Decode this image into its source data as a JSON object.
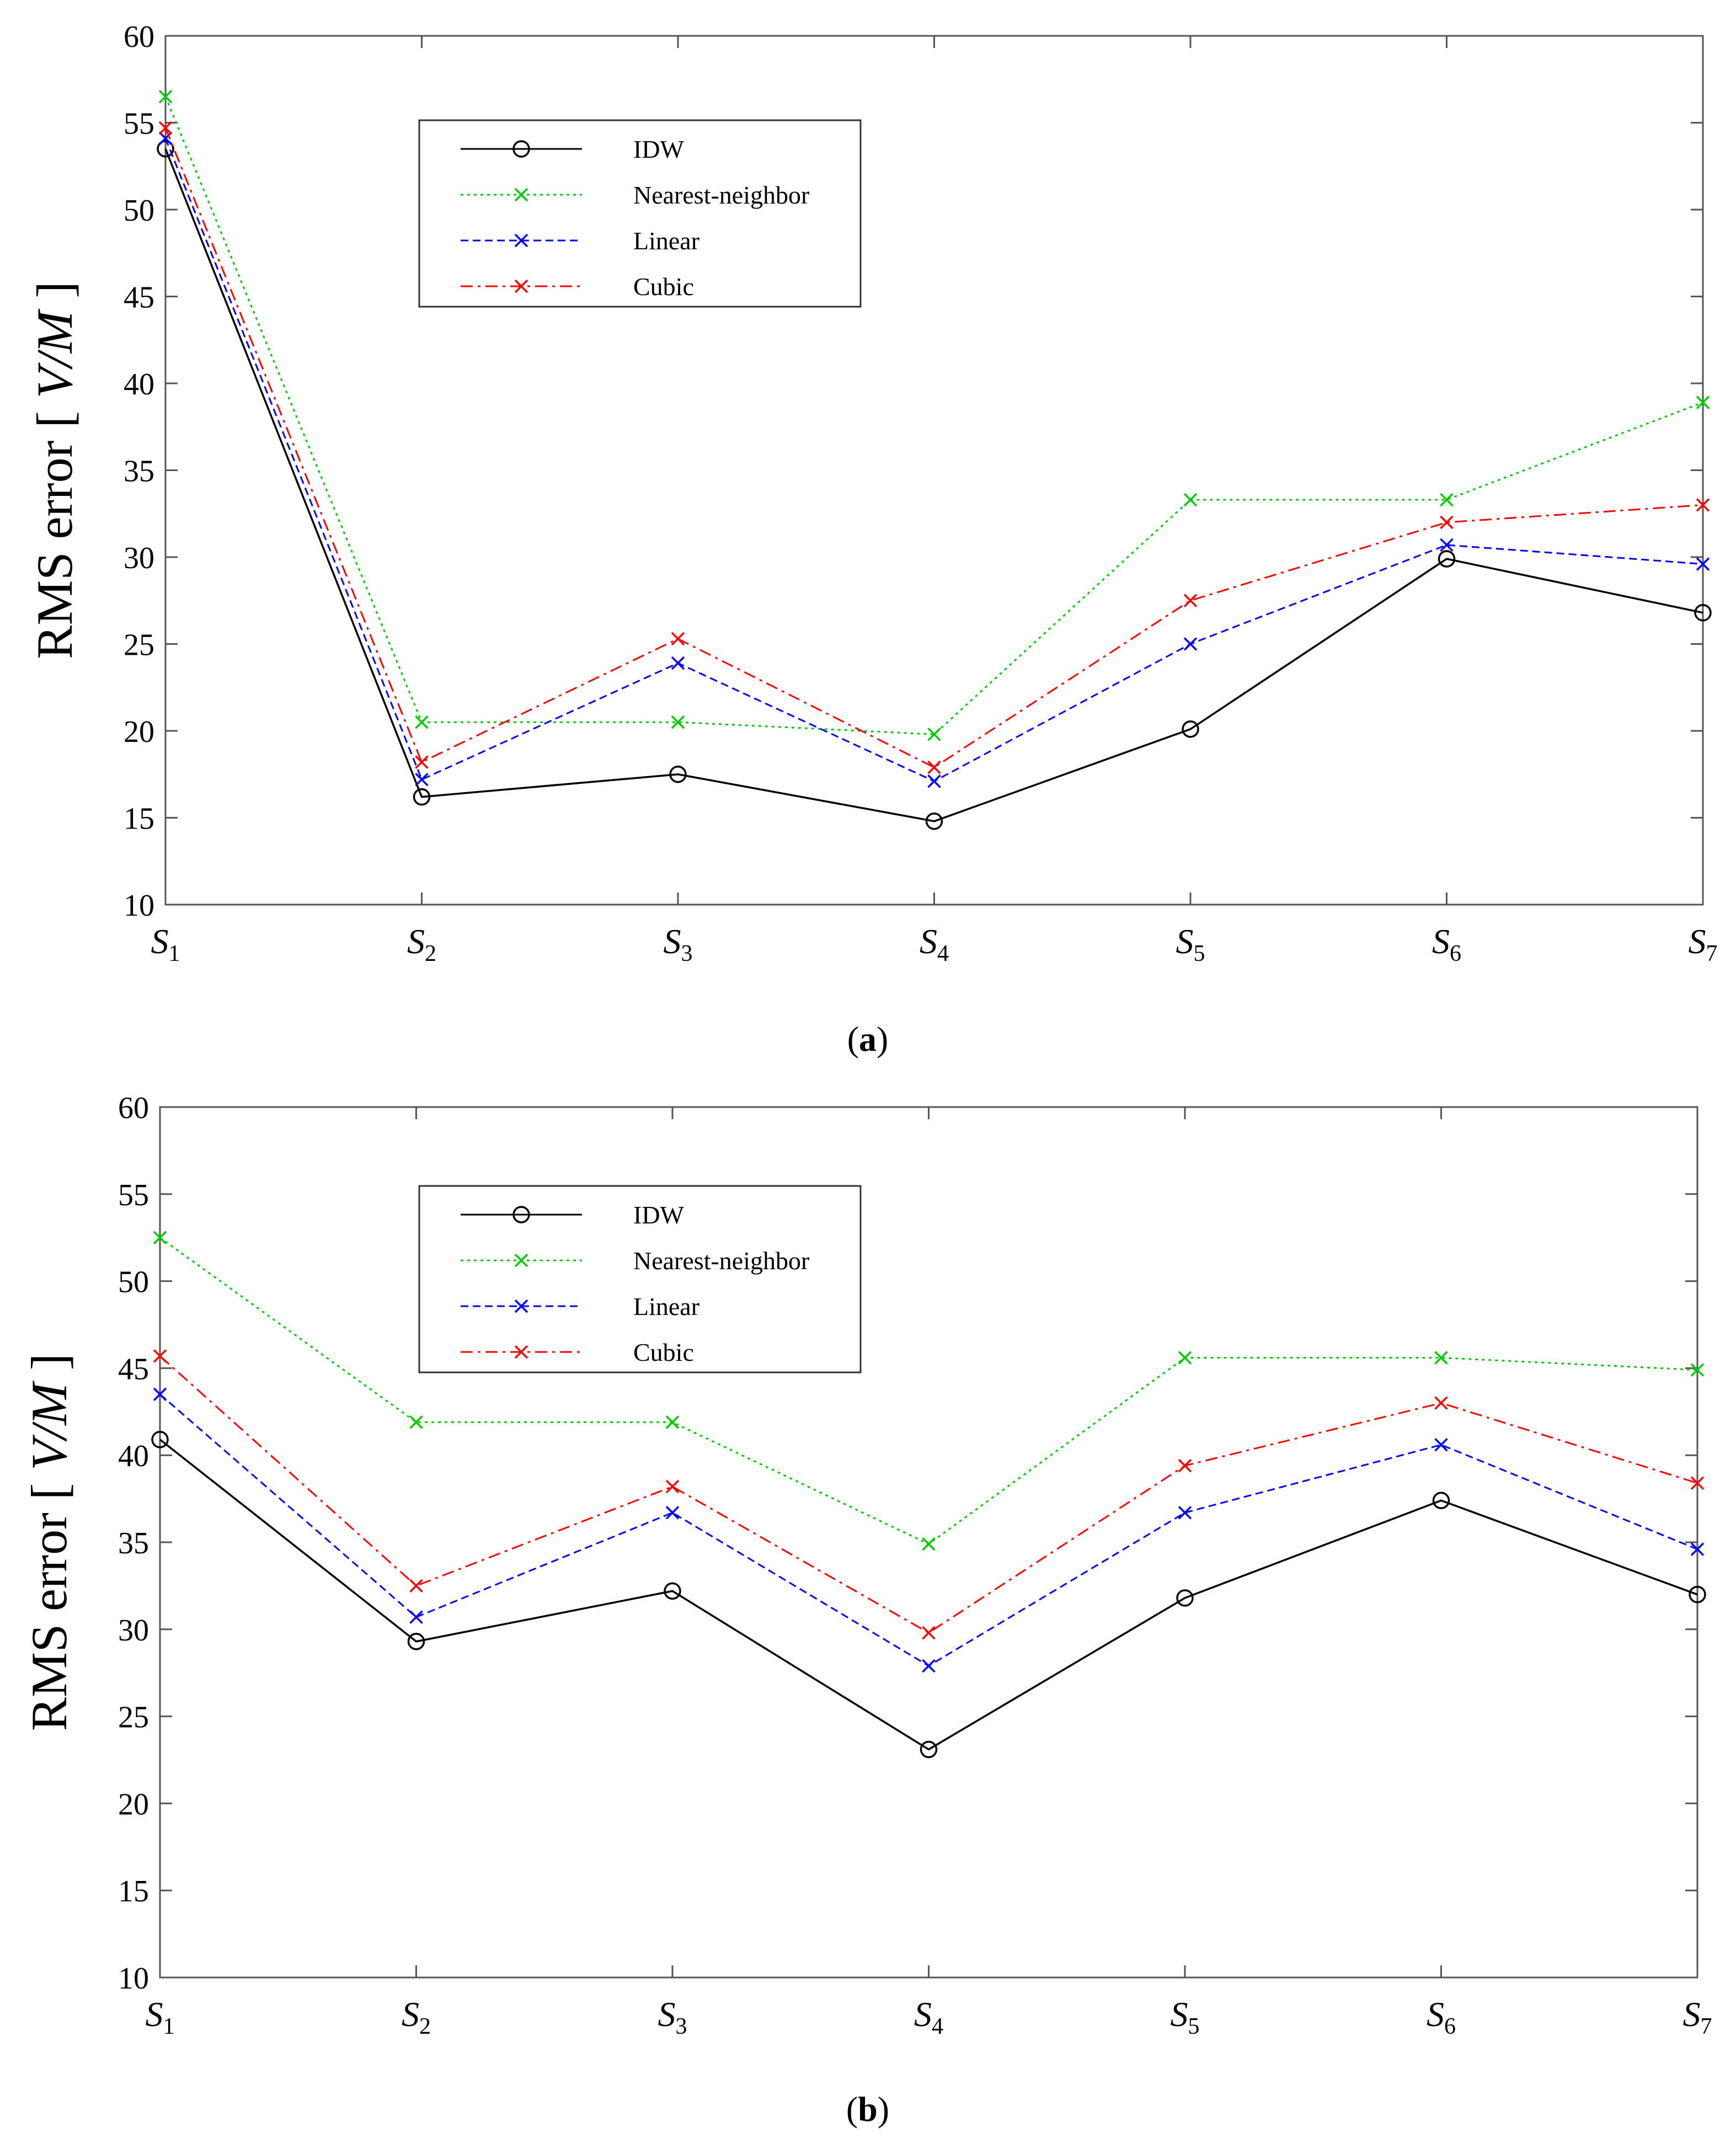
{
  "chart_data": [
    {
      "panel_label": "a",
      "type": "line",
      "ylabel": "RMS error [ V/M ]",
      "ylabel_prefix": "RMS error [ ",
      "ylabel_unit": "V/M",
      "ylabel_suffix": " ]",
      "ylim": [
        10,
        60
      ],
      "yticks": [
        10,
        15,
        20,
        25,
        30,
        35,
        40,
        45,
        50,
        55,
        60
      ],
      "categories": [
        {
          "base": "S",
          "sub": "1"
        },
        {
          "base": "S",
          "sub": "2"
        },
        {
          "base": "S",
          "sub": "3"
        },
        {
          "base": "S",
          "sub": "4"
        },
        {
          "base": "S",
          "sub": "5"
        },
        {
          "base": "S",
          "sub": "6"
        },
        {
          "base": "S",
          "sub": "7"
        }
      ],
      "legend_position": "top-center",
      "series": [
        {
          "name": "IDW",
          "color": "#000000",
          "dash": "solid",
          "marker": "circle",
          "values": [
            53.5,
            16.2,
            17.5,
            14.8,
            20.1,
            29.9,
            26.8
          ]
        },
        {
          "name": "Nearest-neighbor",
          "color": "#00cc00",
          "dash": "dotted",
          "marker": "x",
          "values": [
            56.5,
            20.5,
            20.5,
            19.8,
            33.3,
            33.3,
            38.9
          ]
        },
        {
          "name": "Linear",
          "color": "#0000ff",
          "dash": "dashed",
          "marker": "x",
          "values": [
            54.1,
            17.2,
            23.9,
            17.1,
            25.0,
            30.7,
            29.6
          ]
        },
        {
          "name": "Cubic",
          "color": "#ff0000",
          "dash": "dashdot",
          "marker": "x",
          "values": [
            54.7,
            18.2,
            25.3,
            17.9,
            27.5,
            32.0,
            33.0
          ]
        }
      ]
    },
    {
      "panel_label": "b",
      "type": "line",
      "ylabel": "RMS error [ V/M ]",
      "ylabel_prefix": "RMS error [ ",
      "ylabel_unit": "V/M",
      "ylabel_suffix": " ]",
      "ylim": [
        10,
        60
      ],
      "yticks": [
        10,
        15,
        20,
        25,
        30,
        35,
        40,
        45,
        50,
        55,
        60
      ],
      "categories": [
        {
          "base": "S",
          "sub": "1"
        },
        {
          "base": "S",
          "sub": "2"
        },
        {
          "base": "S",
          "sub": "3"
        },
        {
          "base": "S",
          "sub": "4"
        },
        {
          "base": "S",
          "sub": "5"
        },
        {
          "base": "S",
          "sub": "6"
        },
        {
          "base": "S",
          "sub": "7"
        }
      ],
      "legend_position": "top-center",
      "series": [
        {
          "name": "IDW",
          "color": "#000000",
          "dash": "solid",
          "marker": "circle",
          "values": [
            40.9,
            29.3,
            32.2,
            23.1,
            31.8,
            37.4,
            32.0
          ]
        },
        {
          "name": "Nearest-neighbor",
          "color": "#00cc00",
          "dash": "dotted",
          "marker": "x",
          "values": [
            52.5,
            41.9,
            41.9,
            34.9,
            45.6,
            45.6,
            44.9
          ]
        },
        {
          "name": "Linear",
          "color": "#0000ff",
          "dash": "dashed",
          "marker": "x",
          "values": [
            43.5,
            30.7,
            36.7,
            27.9,
            36.7,
            40.6,
            34.6
          ]
        },
        {
          "name": "Cubic",
          "color": "#ff0000",
          "dash": "dashdot",
          "marker": "x",
          "values": [
            45.7,
            32.5,
            38.2,
            29.8,
            39.4,
            43.0,
            38.4
          ]
        }
      ]
    }
  ]
}
